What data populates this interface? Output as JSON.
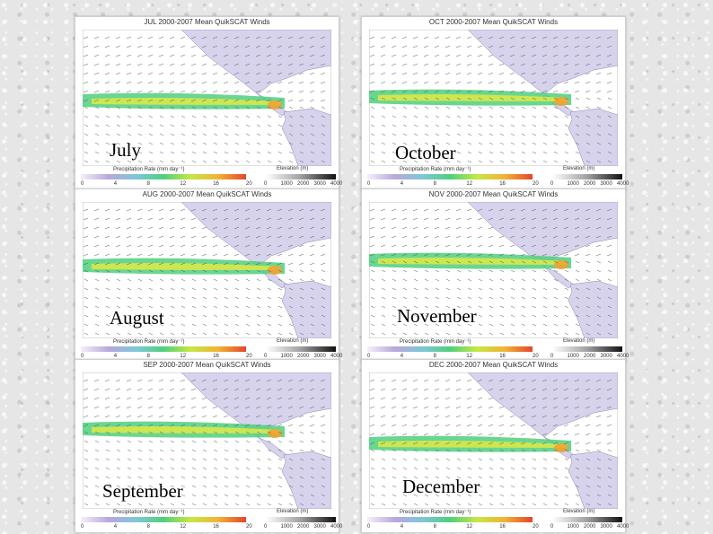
{
  "panels": [
    {
      "id": "jul",
      "title": "JUL 2000-2007 Mean QuikSCAT Winds",
      "month": "July"
    },
    {
      "id": "oct",
      "title": "OCT 2000-2007 Mean QuikSCAT Winds",
      "month": "October"
    },
    {
      "id": "aug",
      "title": "AUG 2000-2007 Mean QuikSCAT Winds",
      "month": "August"
    },
    {
      "id": "nov",
      "title": "NOV 2000-2007 Mean QuikSCAT Winds",
      "month": "November"
    },
    {
      "id": "sep",
      "title": "SEP 2000-2007 Mean QuikSCAT Winds",
      "month": "September"
    },
    {
      "id": "dec",
      "title": "DEC 2000-2007 Mean QuikSCAT Winds",
      "month": "December"
    }
  ],
  "legend": {
    "precip_label": "Precipitation Rate (mm day⁻¹)",
    "elev_label": "Elevation (m)",
    "precip_ticks": [
      "0",
      "4",
      "8",
      "12",
      "16",
      "20"
    ],
    "elev_ticks": [
      "0",
      "1000",
      "2000",
      "3000",
      "4000"
    ]
  },
  "colors": {
    "background": "#e6e6e6",
    "ocean": "#ffffff",
    "land": "#d8d3ec",
    "itcz_green": "#4fcf7e",
    "itcz_yellow": "#d8e84a",
    "itcz_orange": "#f2a233",
    "wind_arrow": "#555555"
  },
  "icons": [
    "wind-vector-icon"
  ]
}
